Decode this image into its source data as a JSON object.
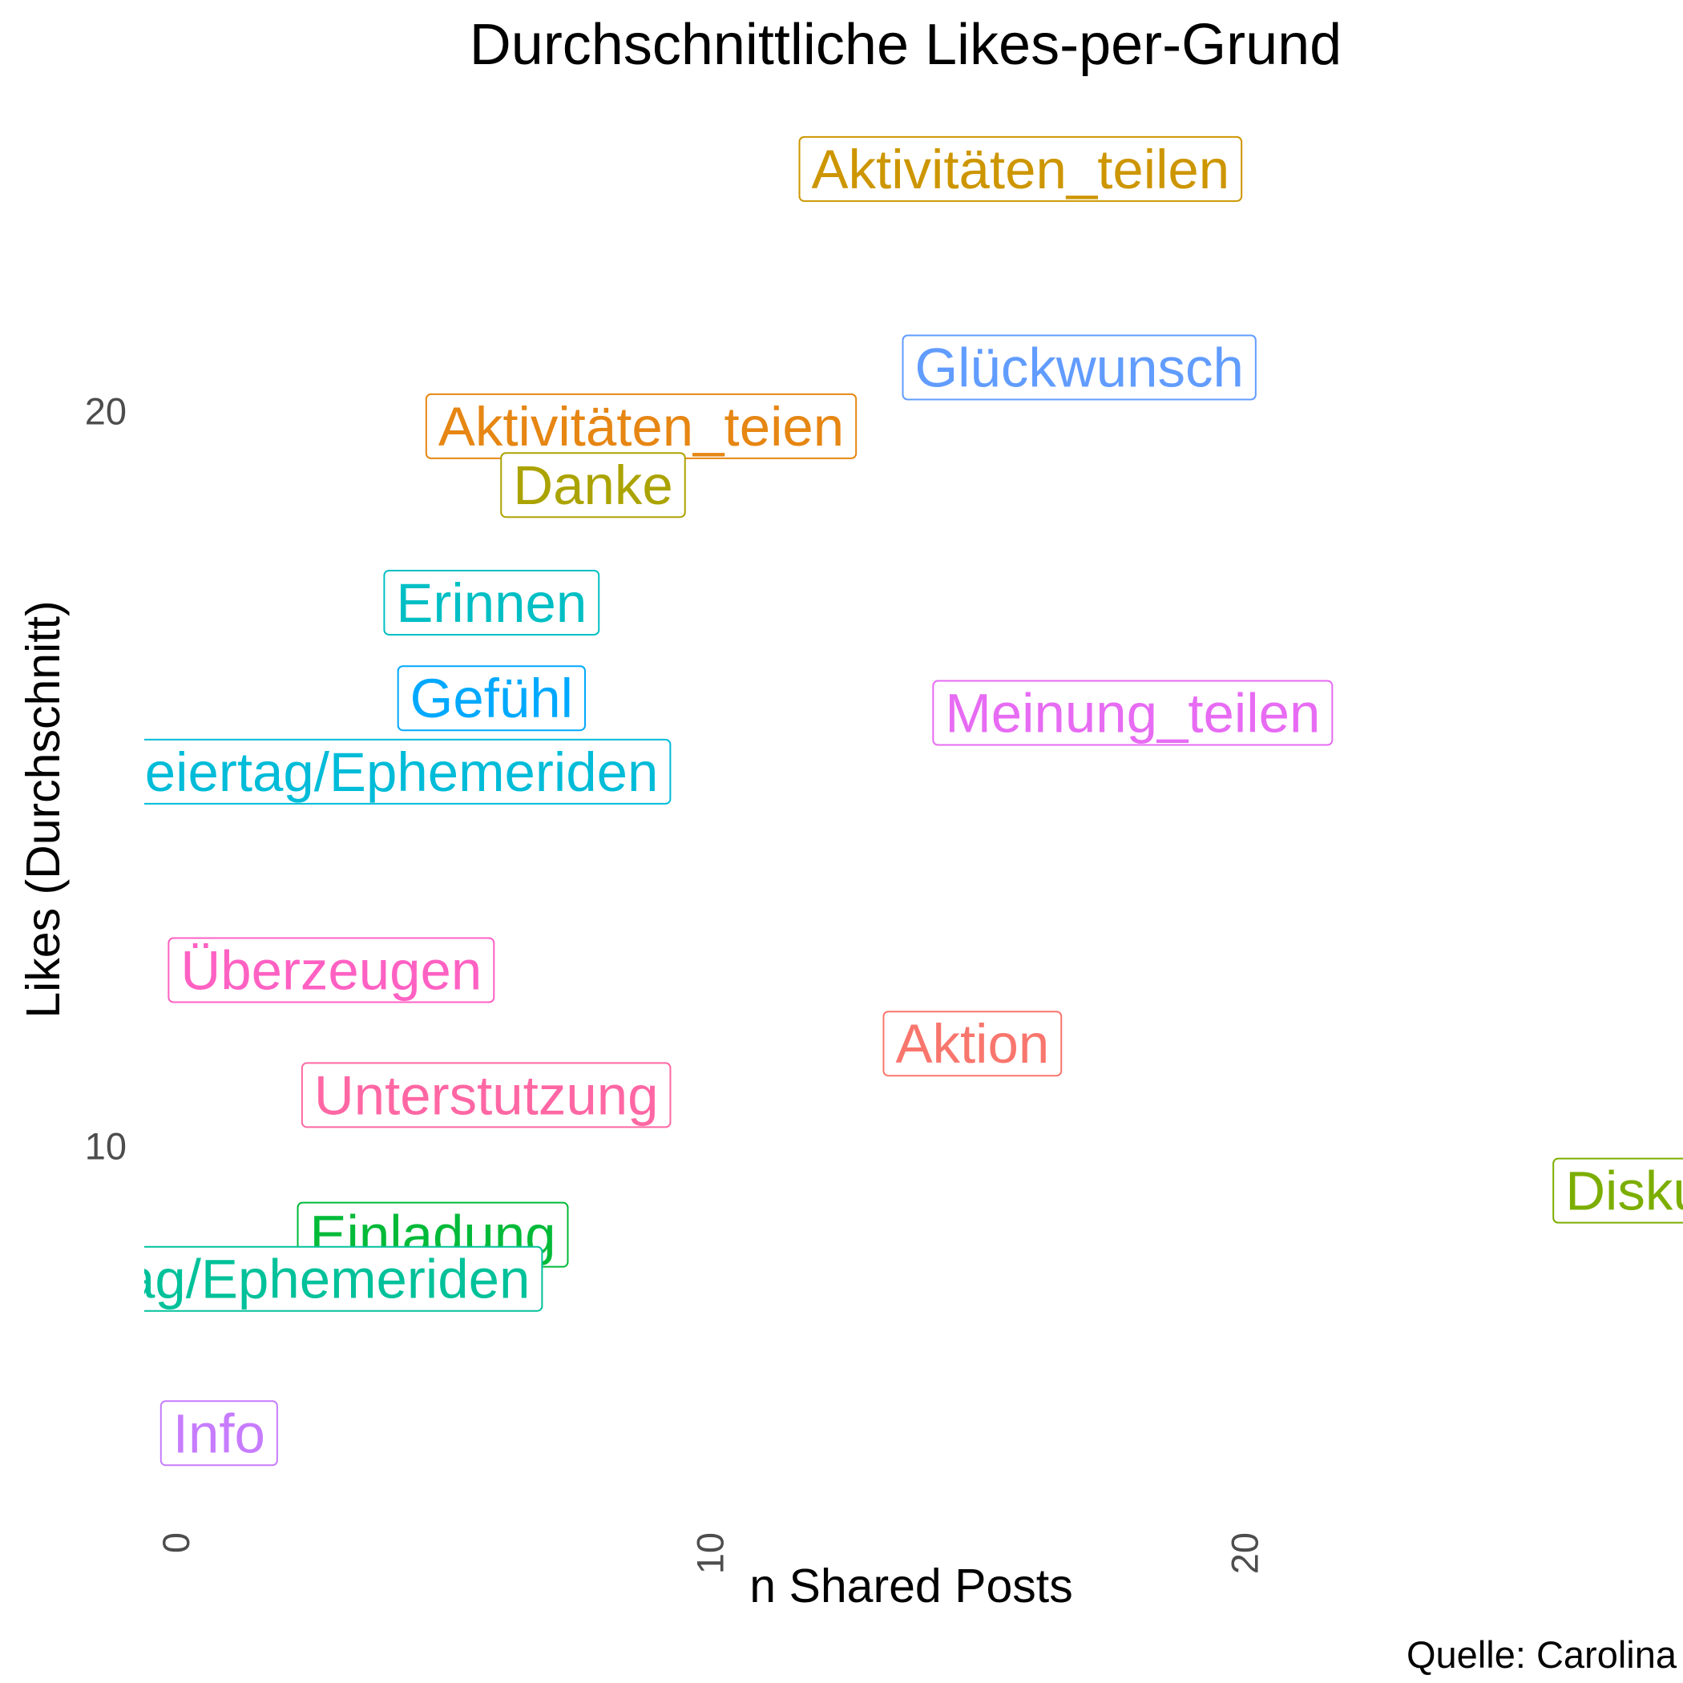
{
  "chart_data": {
    "type": "scatter",
    "title": "Durchschnittliche Likes-per-Grund",
    "xlabel": "n Shared Posts",
    "ylabel": "Likes (Durchschnitt)",
    "caption": "Quelle: Carolina",
    "xlim": [
      -0.6,
      28.2
    ],
    "ylim": [
      5.1,
      24.4
    ],
    "x_ticks": [
      0,
      10,
      20
    ],
    "y_ticks": [
      10,
      20
    ],
    "grid": false,
    "legend": "none",
    "points": [
      {
        "label": "Aktivitäten_teilen",
        "x": 15.8,
        "y": 23.3,
        "color": "#CD9600"
      },
      {
        "label": "Glückwunsch",
        "x": 16.9,
        "y": 20.6,
        "color": "#619CFF"
      },
      {
        "label": "Aktivitäten_teien",
        "x": 8.7,
        "y": 19.8,
        "color": "#E68613"
      },
      {
        "label": "Danke",
        "x": 7.8,
        "y": 19.0,
        "color": "#ABA300"
      },
      {
        "label": "Erinnen",
        "x": 5.9,
        "y": 17.4,
        "color": "#00BFC4"
      },
      {
        "label": "Gefühl",
        "x": 5.9,
        "y": 16.1,
        "color": "#00A9FF"
      },
      {
        "label": "Meinung_teilen",
        "x": 17.9,
        "y": 15.9,
        "color": "#E76BF3"
      },
      {
        "label": "Feiertag/Ephemeriden",
        "x": 3.9,
        "y": 15.1,
        "color": "#00BCD8"
      },
      {
        "label": "Überzeugen",
        "x": 2.9,
        "y": 12.4,
        "color": "#FF61C3"
      },
      {
        "label": "Aktion",
        "x": 14.9,
        "y": 11.4,
        "color": "#F8766D"
      },
      {
        "label": "Unterstutzung",
        "x": 5.8,
        "y": 10.7,
        "color": "#FF67A4"
      },
      {
        "label": "Diskussion",
        "x": 28.5,
        "y": 9.4,
        "color": "#7CAE00"
      },
      {
        "label": "Einladung",
        "x": 4.8,
        "y": 8.8,
        "color": "#00BA38"
      },
      {
        "label": "Feiertag/Ephemeriden",
        "x": 1.5,
        "y": 8.2,
        "color": "#00C19A"
      },
      {
        "label": "Info",
        "x": 0.8,
        "y": 6.1,
        "color": "#C77CFF"
      }
    ]
  }
}
